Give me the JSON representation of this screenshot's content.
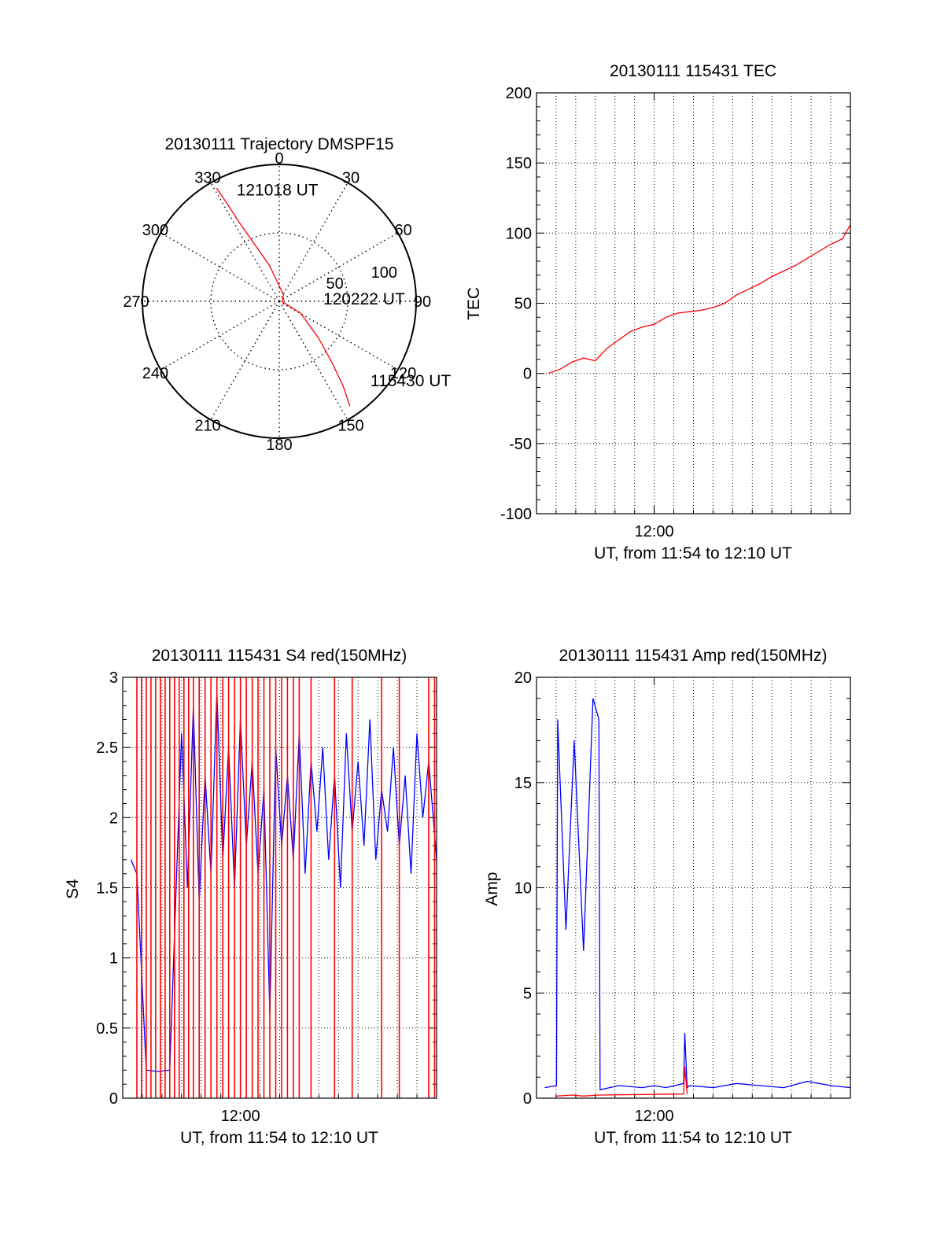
{
  "colors": {
    "primary": "#ff0000",
    "secondary": "#0000ff",
    "axis": "#000000",
    "grid": "#000000"
  },
  "chart_data": [
    {
      "type": "polar-trajectory",
      "title": "20130111 Trajectory DMSPF15",
      "azimuth_labels": [
        "0",
        "30",
        "60",
        "90",
        "120",
        "150",
        "180",
        "210",
        "240",
        "270",
        "300",
        "330"
      ],
      "radial_ticks": [
        50,
        100
      ],
      "radial_labels": [
        "50",
        "100"
      ],
      "grid": true,
      "path": [
        {
          "az": 146,
          "el": 7
        },
        {
          "az": 143,
          "el": 20
        },
        {
          "az": 139,
          "el": 38
        },
        {
          "az": 133,
          "el": 55
        },
        {
          "az": 119,
          "el": 74
        },
        {
          "az": 97,
          "el": 88
        },
        {
          "az": 33,
          "el": 85
        },
        {
          "az": 345,
          "el": 66
        },
        {
          "az": 336,
          "el": 47
        },
        {
          "az": 333,
          "el": 31
        },
        {
          "az": 332,
          "el": 18
        },
        {
          "az": 331,
          "el": 5
        }
      ],
      "annotations": [
        {
          "text": "121018 UT",
          "az": 338,
          "el": 15
        },
        {
          "text": "120222 UT",
          "az": 94,
          "el": 61
        },
        {
          "text": "115430 UT",
          "az": 133,
          "el": 8
        }
      ]
    },
    {
      "type": "line",
      "title": "20130111 115431 TEC",
      "xlabel": "UT, from 11:54 to 12:10 UT",
      "ylabel": "TEC",
      "xlim": [
        11.9,
        12.1667
      ],
      "ylim": [
        -100,
        200
      ],
      "yticks": [
        -100,
        -50,
        0,
        50,
        100,
        150,
        200
      ],
      "ytick_labels": [
        "-100",
        "-50",
        "0",
        "50",
        "100",
        "150",
        "200"
      ],
      "xticks": [
        12.0
      ],
      "xtick_labels": [
        "12:00"
      ],
      "grid": true,
      "series": [
        {
          "color": "#ff0000",
          "x": [
            11.91,
            11.92,
            11.93,
            11.94,
            11.95,
            11.96,
            11.97,
            11.98,
            11.99,
            12.0,
            12.01,
            12.02,
            12.03,
            12.04,
            12.05,
            12.06,
            12.07,
            12.08,
            12.09,
            12.1,
            12.11,
            12.12,
            12.13,
            12.14,
            12.15,
            12.16,
            12.1667
          ],
          "values": [
            0,
            3,
            8,
            11,
            9,
            18,
            24,
            30,
            33,
            35,
            40,
            43,
            44,
            45,
            47,
            50,
            56,
            60,
            64,
            69,
            73,
            77,
            82,
            87,
            92,
            96,
            106
          ]
        }
      ]
    },
    {
      "type": "line",
      "title": "20130111 115431 S4 red(150MHz)",
      "xlabel": "UT, from 11:54 to 12:10 UT",
      "ylabel": "S4",
      "xlim": [
        11.9,
        12.1667
      ],
      "ylim": [
        0,
        3
      ],
      "yticks": [
        0,
        0.5,
        1,
        1.5,
        2,
        2.5,
        3
      ],
      "ytick_labels": [
        "0",
        "0.5",
        "1",
        "1.5",
        "2",
        "2.5",
        "3"
      ],
      "xticks": [
        12.0
      ],
      "xtick_labels": [
        "12:00"
      ],
      "grid": true,
      "series": [
        {
          "color": "#0000ff",
          "x": [
            11.907,
            11.912,
            11.92,
            11.93,
            11.94,
            11.95,
            11.955,
            11.96,
            11.965,
            11.97,
            11.975,
            11.98,
            11.985,
            11.99,
            11.995,
            12.0,
            12.005,
            12.01,
            12.015,
            12.02,
            12.025,
            12.03,
            12.035,
            12.04,
            12.045,
            12.05,
            12.055,
            12.06,
            12.065,
            12.07,
            12.075,
            12.08,
            12.085,
            12.09,
            12.095,
            12.1,
            12.105,
            12.11,
            12.115,
            12.12,
            12.125,
            12.13,
            12.135,
            12.14,
            12.145,
            12.15,
            12.155,
            12.16,
            12.1667
          ],
          "values": [
            1.7,
            1.6,
            0.2,
            0.19,
            0.2,
            2.6,
            1.5,
            2.8,
            1.4,
            2.3,
            1.6,
            2.9,
            1.7,
            2.5,
            1.5,
            2.7,
            1.8,
            2.4,
            1.6,
            2.2,
            0.6,
            2.5,
            1.8,
            2.3,
            1.7,
            2.6,
            1.6,
            2.4,
            1.9,
            2.5,
            1.7,
            2.3,
            1.5,
            2.6,
            1.9,
            2.4,
            1.8,
            2.7,
            1.7,
            2.2,
            1.9,
            2.5,
            1.8,
            2.3,
            1.6,
            2.6,
            2.0,
            2.4,
            1.7
          ]
        },
        {
          "color": "#ff0000",
          "x": [
            11.912,
            11.916,
            11.92,
            11.924,
            11.928,
            11.932,
            11.936,
            11.94,
            11.944,
            11.948,
            11.952,
            11.956,
            11.96,
            11.965,
            11.97,
            11.975,
            11.98,
            11.985,
            11.99,
            11.995,
            12.0,
            12.005,
            12.01,
            12.015,
            12.02,
            12.025,
            12.03,
            12.035,
            12.04,
            12.045,
            12.05,
            12.06,
            12.08,
            12.095,
            12.12,
            12.135,
            12.16,
            12.165
          ],
          "values": [
            3,
            3,
            3,
            3,
            3,
            3,
            3,
            3,
            3,
            3,
            3,
            3,
            3,
            3,
            3,
            3,
            3,
            3,
            3,
            3,
            3,
            3,
            3,
            3,
            3,
            3,
            3,
            3,
            3,
            3,
            3,
            3,
            3,
            3,
            3,
            3,
            3,
            3
          ]
        }
      ]
    },
    {
      "type": "line",
      "title": "20130111 115431 Amp red(150MHz)",
      "xlabel": "UT, from 11:54 to 12:10 UT",
      "ylabel": "Amp",
      "xlim": [
        11.9,
        12.1667
      ],
      "ylim": [
        0,
        20
      ],
      "yticks": [
        0,
        5,
        10,
        15,
        20
      ],
      "ytick_labels": [
        "0",
        "5",
        "10",
        "15",
        "20"
      ],
      "xticks": [
        12.0
      ],
      "xtick_labels": [
        "12:00"
      ],
      "grid": true,
      "series": [
        {
          "color": "#0000ff",
          "x": [
            11.907,
            11.917,
            11.918,
            11.925,
            11.932,
            11.94,
            11.948,
            11.953,
            11.954,
            11.97,
            11.99,
            12.0,
            12.01,
            12.025,
            12.026,
            12.028,
            12.03,
            12.05,
            12.07,
            12.09,
            12.11,
            12.13,
            12.15,
            12.1667
          ],
          "values": [
            0.5,
            0.6,
            18,
            8,
            17,
            7,
            19,
            18,
            0.4,
            0.6,
            0.5,
            0.6,
            0.5,
            0.7,
            3.1,
            0.5,
            0.6,
            0.5,
            0.7,
            0.6,
            0.5,
            0.8,
            0.6,
            0.5
          ]
        },
        {
          "color": "#ff0000",
          "x": [
            11.917,
            11.93,
            11.94,
            11.953,
            12.025,
            12.026,
            12.028
          ],
          "values": [
            0.1,
            0.15,
            0.1,
            0.15,
            0.2,
            1.5,
            0.2
          ]
        }
      ]
    }
  ]
}
